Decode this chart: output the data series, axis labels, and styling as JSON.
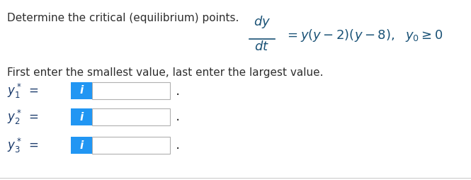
{
  "title_text": "Determine the critical (equilibrium) points.",
  "title_color": "#2e2e2e",
  "title_fontsize": 11.0,
  "subtitle_text": "First enter the smallest value, last enter the largest value.",
  "subtitle_color": "#2e2e2e",
  "subtitle_fontsize": 11.0,
  "equation_color": "#1a5276",
  "equation_fontsize": 13,
  "input_box_color": "#ffffff",
  "input_box_edge_color": "#b0b0b0",
  "icon_color": "#2196f3",
  "icon_text": "i",
  "icon_text_color": "#ffffff",
  "dot_color": "#2e2e2e",
  "background_color": "#ffffff",
  "bottom_line_color": "#cccccc",
  "label_color": "#1a3a6b",
  "label_fontsize": 12
}
